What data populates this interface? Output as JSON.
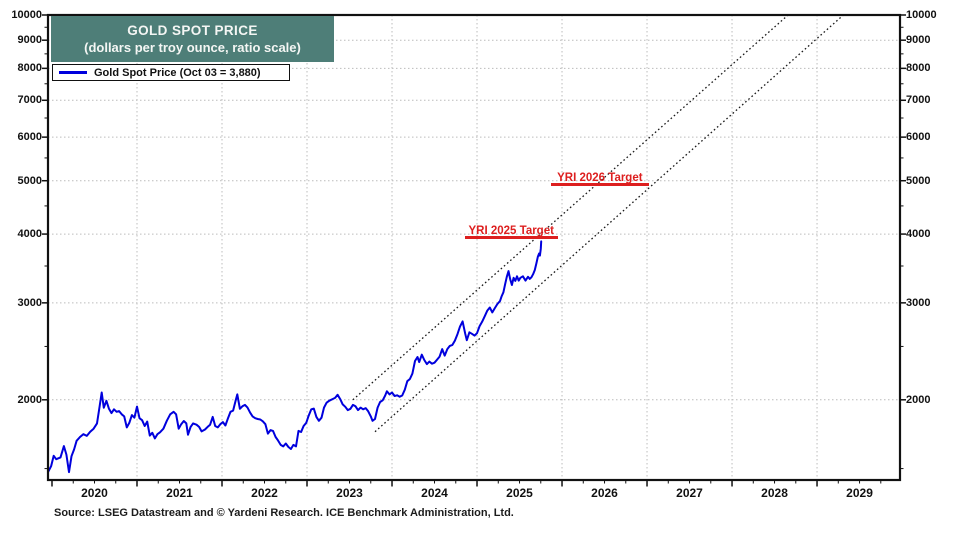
{
  "header": {
    "title": "GOLD SPOT PRICE",
    "subtitle": "(dollars per troy ounce, ratio scale)",
    "title_bg_color": "#4e7e78",
    "title_text_color": "#f4f6f4"
  },
  "legend": {
    "label": "Gold Spot Price (Oct 03 = 3,880)",
    "swatch_color": "#0000dd"
  },
  "footer": {
    "source": "Source: LSEG Datastream and © Yardeni Research. ICE Benchmark Administration, Ltd."
  },
  "colors": {
    "price_line": "#0000dd",
    "annotation_red": "#dd1f1f",
    "axis": "#111111",
    "grid": "#bcbcbc",
    "channel": "#1a1a1a",
    "background": "#ffffff"
  },
  "chart_data": {
    "type": "line",
    "title": "GOLD SPOT PRICE",
    "subtitle": "(dollars per troy ounce, ratio scale)",
    "xlabel": "",
    "ylabel": "dollars per troy ounce",
    "y_scale": "log",
    "x_range": [
      2019.953,
      2029.976
    ],
    "y_range": [
      1430,
      10000
    ],
    "y_major_ticks": [
      2000,
      3000,
      4000,
      5000,
      6000,
      7000,
      8000,
      9000,
      10000
    ],
    "y_minor_ticks": [
      1500,
      2500,
      3500,
      4500,
      5500,
      6500,
      7500,
      8500,
      9500
    ],
    "x_major_ticks": [
      2020,
      2021,
      2022,
      2023,
      2024,
      2025,
      2026,
      2027,
      2028,
      2029
    ],
    "x_year_labels": [
      "2020",
      "2021",
      "2022",
      "2023",
      "2024",
      "2025",
      "2026",
      "2027",
      "2028",
      "2029"
    ],
    "grid": {
      "h_values": [
        2000,
        3000,
        4000,
        5000,
        6000,
        7000,
        8000,
        9000
      ],
      "v_years": [
        2021,
        2022,
        2023,
        2024,
        2025,
        2026,
        2027,
        2028,
        2029
      ]
    },
    "legend_position": "top-left",
    "series": [
      {
        "name": "Gold Spot Price (Oct 03 = 3,880)",
        "color": "#0000dd",
        "last_point_label": "Oct 03 = 3,880",
        "points": [
          [
            2019.953,
            1478
          ],
          [
            2019.99,
            1515
          ],
          [
            2020.02,
            1582
          ],
          [
            2020.05,
            1560
          ],
          [
            2020.1,
            1572
          ],
          [
            2020.14,
            1648
          ],
          [
            2020.17,
            1590
          ],
          [
            2020.2,
            1478
          ],
          [
            2020.23,
            1580
          ],
          [
            2020.26,
            1625
          ],
          [
            2020.29,
            1685
          ],
          [
            2020.33,
            1712
          ],
          [
            2020.37,
            1732
          ],
          [
            2020.41,
            1720
          ],
          [
            2020.45,
            1750
          ],
          [
            2020.49,
            1772
          ],
          [
            2020.53,
            1812
          ],
          [
            2020.56,
            1945
          ],
          [
            2020.585,
            2062
          ],
          [
            2020.61,
            1935
          ],
          [
            2020.64,
            1992
          ],
          [
            2020.67,
            1928
          ],
          [
            2020.7,
            1892
          ],
          [
            2020.73,
            1922
          ],
          [
            2020.76,
            1902
          ],
          [
            2020.79,
            1908
          ],
          [
            2020.82,
            1882
          ],
          [
            2020.85,
            1866
          ],
          [
            2020.88,
            1782
          ],
          [
            2020.91,
            1816
          ],
          [
            2020.94,
            1876
          ],
          [
            2020.97,
            1856
          ],
          [
            2021.0,
            1944
          ],
          [
            2021.03,
            1852
          ],
          [
            2021.06,
            1836
          ],
          [
            2021.09,
            1792
          ],
          [
            2021.12,
            1826
          ],
          [
            2021.15,
            1722
          ],
          [
            2021.18,
            1742
          ],
          [
            2021.21,
            1702
          ],
          [
            2021.24,
            1732
          ],
          [
            2021.27,
            1746
          ],
          [
            2021.31,
            1772
          ],
          [
            2021.35,
            1832
          ],
          [
            2021.39,
            1882
          ],
          [
            2021.43,
            1902
          ],
          [
            2021.46,
            1882
          ],
          [
            2021.49,
            1772
          ],
          [
            2021.52,
            1806
          ],
          [
            2021.55,
            1830
          ],
          [
            2021.58,
            1812
          ],
          [
            2021.6,
            1728
          ],
          [
            2021.63,
            1786
          ],
          [
            2021.66,
            1812
          ],
          [
            2021.7,
            1802
          ],
          [
            2021.73,
            1786
          ],
          [
            2021.76,
            1752
          ],
          [
            2021.8,
            1766
          ],
          [
            2021.83,
            1786
          ],
          [
            2021.86,
            1802
          ],
          [
            2021.89,
            1862
          ],
          [
            2021.92,
            1792
          ],
          [
            2021.95,
            1782
          ],
          [
            2021.98,
            1806
          ],
          [
            2022.01,
            1822
          ],
          [
            2022.04,
            1796
          ],
          [
            2022.07,
            1852
          ],
          [
            2022.1,
            1902
          ],
          [
            2022.13,
            1912
          ],
          [
            2022.16,
            1992
          ],
          [
            2022.18,
            2046
          ],
          [
            2022.21,
            1926
          ],
          [
            2022.24,
            1946
          ],
          [
            2022.27,
            1958
          ],
          [
            2022.3,
            1936
          ],
          [
            2022.33,
            1896
          ],
          [
            2022.36,
            1866
          ],
          [
            2022.39,
            1852
          ],
          [
            2022.42,
            1846
          ],
          [
            2022.45,
            1842
          ],
          [
            2022.48,
            1828
          ],
          [
            2022.51,
            1806
          ],
          [
            2022.54,
            1736
          ],
          [
            2022.57,
            1762
          ],
          [
            2022.6,
            1756
          ],
          [
            2022.63,
            1712
          ],
          [
            2022.66,
            1686
          ],
          [
            2022.69,
            1656
          ],
          [
            2022.72,
            1646
          ],
          [
            2022.75,
            1666
          ],
          [
            2022.78,
            1642
          ],
          [
            2022.81,
            1628
          ],
          [
            2022.84,
            1656
          ],
          [
            2022.87,
            1646
          ],
          [
            2022.9,
            1756
          ],
          [
            2022.93,
            1748
          ],
          [
            2022.96,
            1792
          ],
          [
            2022.99,
            1816
          ],
          [
            2023.02,
            1872
          ],
          [
            2023.05,
            1922
          ],
          [
            2023.08,
            1928
          ],
          [
            2023.11,
            1862
          ],
          [
            2023.14,
            1832
          ],
          [
            2023.17,
            1856
          ],
          [
            2023.2,
            1936
          ],
          [
            2023.23,
            1976
          ],
          [
            2023.26,
            1992
          ],
          [
            2023.3,
            2006
          ],
          [
            2023.33,
            2016
          ],
          [
            2023.36,
            2042
          ],
          [
            2023.39,
            2006
          ],
          [
            2023.42,
            1962
          ],
          [
            2023.45,
            1942
          ],
          [
            2023.48,
            1916
          ],
          [
            2023.51,
            1926
          ],
          [
            2023.54,
            1958
          ],
          [
            2023.57,
            1946
          ],
          [
            2023.6,
            1916
          ],
          [
            2023.63,
            1936
          ],
          [
            2023.66,
            1922
          ],
          [
            2023.69,
            1932
          ],
          [
            2023.72,
            1906
          ],
          [
            2023.75,
            1866
          ],
          [
            2023.77,
            1832
          ],
          [
            2023.8,
            1846
          ],
          [
            2023.83,
            1936
          ],
          [
            2023.86,
            1982
          ],
          [
            2023.89,
            1996
          ],
          [
            2023.92,
            2036
          ],
          [
            2023.94,
            2072
          ],
          [
            2023.97,
            2046
          ],
          [
            2024.0,
            2062
          ],
          [
            2024.03,
            2032
          ],
          [
            2024.06,
            2038
          ],
          [
            2024.09,
            2026
          ],
          [
            2024.12,
            2036
          ],
          [
            2024.15,
            2086
          ],
          [
            2024.18,
            2162
          ],
          [
            2024.21,
            2182
          ],
          [
            2024.24,
            2232
          ],
          [
            2024.27,
            2352
          ],
          [
            2024.3,
            2392
          ],
          [
            2024.32,
            2342
          ],
          [
            2024.35,
            2415
          ],
          [
            2024.38,
            2362
          ],
          [
            2024.41,
            2322
          ],
          [
            2024.44,
            2346
          ],
          [
            2024.47,
            2326
          ],
          [
            2024.5,
            2336
          ],
          [
            2024.53,
            2366
          ],
          [
            2024.56,
            2396
          ],
          [
            2024.59,
            2472
          ],
          [
            2024.62,
            2406
          ],
          [
            2024.65,
            2472
          ],
          [
            2024.68,
            2506
          ],
          [
            2024.71,
            2516
          ],
          [
            2024.74,
            2562
          ],
          [
            2024.77,
            2632
          ],
          [
            2024.8,
            2716
          ],
          [
            2024.83,
            2776
          ],
          [
            2024.86,
            2642
          ],
          [
            2024.88,
            2566
          ],
          [
            2024.91,
            2652
          ],
          [
            2024.94,
            2636
          ],
          [
            2024.97,
            2616
          ],
          [
            2025.0,
            2642
          ],
          [
            2025.03,
            2722
          ],
          [
            2025.06,
            2772
          ],
          [
            2025.09,
            2836
          ],
          [
            2025.12,
            2902
          ],
          [
            2025.15,
            2942
          ],
          [
            2025.18,
            2882
          ],
          [
            2025.21,
            2936
          ],
          [
            2025.24,
            2986
          ],
          [
            2025.27,
            3022
          ],
          [
            2025.29,
            3086
          ],
          [
            2025.31,
            3136
          ],
          [
            2025.33,
            3242
          ],
          [
            2025.35,
            3346
          ],
          [
            2025.37,
            3426
          ],
          [
            2025.39,
            3312
          ],
          [
            2025.41,
            3232
          ],
          [
            2025.43,
            3332
          ],
          [
            2025.45,
            3288
          ],
          [
            2025.47,
            3352
          ],
          [
            2025.49,
            3292
          ],
          [
            2025.51,
            3332
          ],
          [
            2025.54,
            3352
          ],
          [
            2025.57,
            3292
          ],
          [
            2025.6,
            3346
          ],
          [
            2025.62,
            3316
          ],
          [
            2025.64,
            3338
          ],
          [
            2025.66,
            3382
          ],
          [
            2025.68,
            3442
          ],
          [
            2025.7,
            3546
          ],
          [
            2025.715,
            3636
          ],
          [
            2025.73,
            3688
          ],
          [
            2025.74,
            3656
          ],
          [
            2025.75,
            3762
          ],
          [
            2025.755,
            3880
          ]
        ]
      }
    ],
    "trend_channel": {
      "style": "dotted",
      "color": "#1a1a1a",
      "lines": [
        {
          "name": "upper",
          "from": [
            2023.54,
            2000
          ],
          "to": [
            2028.66,
            10000
          ]
        },
        {
          "name": "lower",
          "from": [
            2023.8,
            1750
          ],
          "to": [
            2029.31,
            10000
          ]
        }
      ]
    },
    "annotations": [
      {
        "label": "YRI 2025 Target",
        "value": 4000,
        "t_start": 2024.855,
        "t_end": 2025.95,
        "color": "#dd1f1f"
      },
      {
        "label": "YRI 2026 Target",
        "value": 5000,
        "t_start": 2025.87,
        "t_end": 2027.02,
        "color": "#dd1f1f"
      }
    ]
  }
}
